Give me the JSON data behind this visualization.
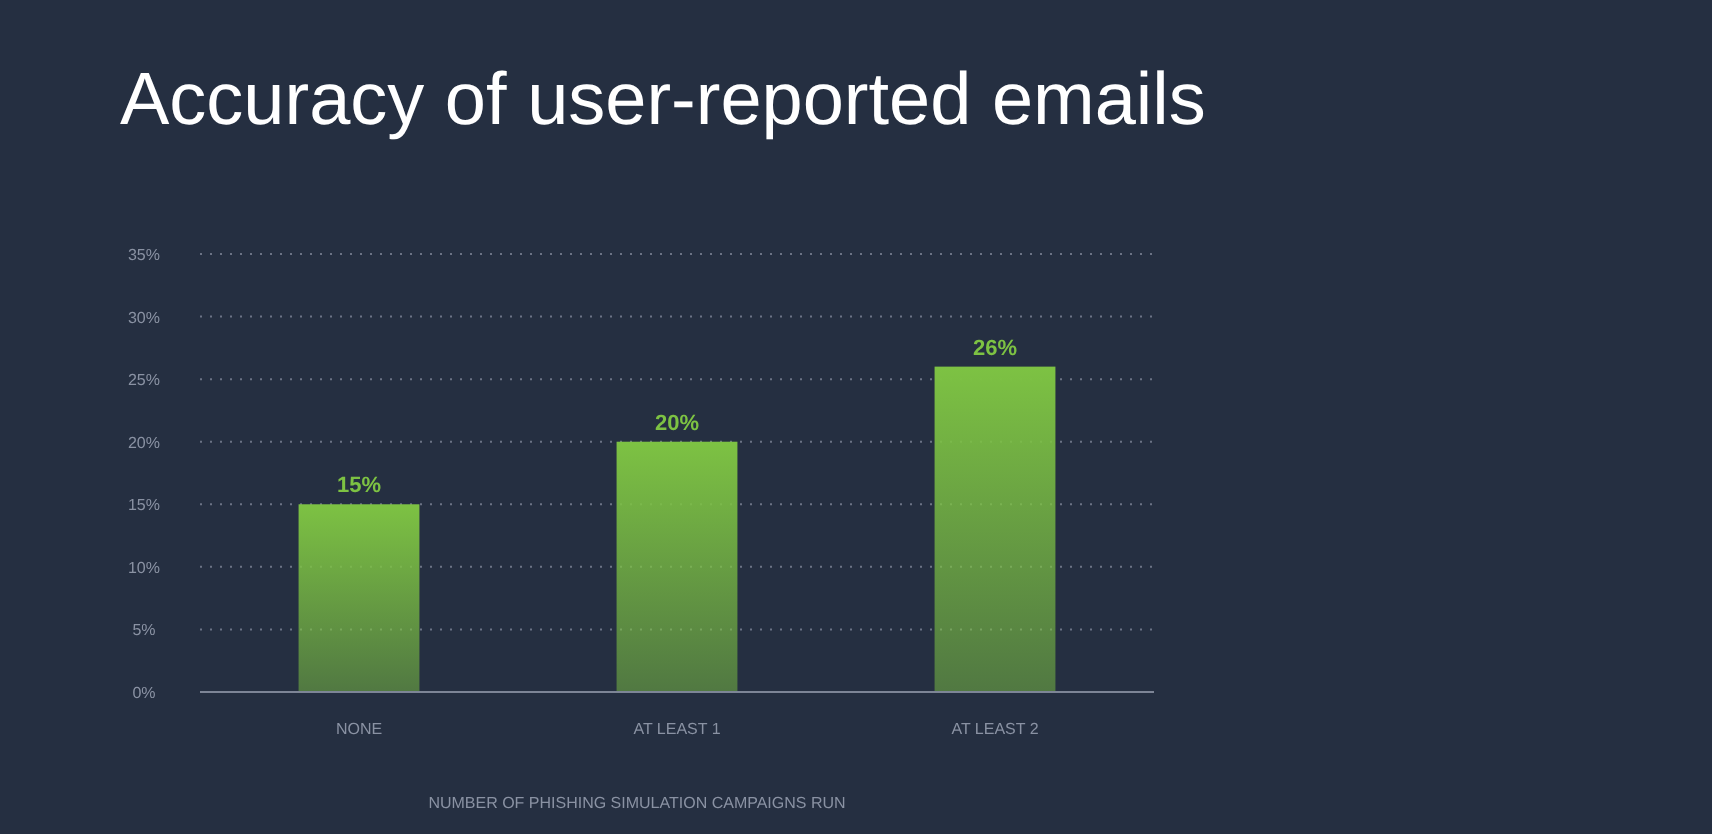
{
  "chart_data": {
    "type": "bar",
    "title": "Accuracy of user-reported emails",
    "xlabel": "NUMBER OF PHISHING SIMULATION CAMPAIGNS RUN",
    "categories": [
      "NONE",
      "AT LEAST 1",
      "AT LEAST 2"
    ],
    "values": [
      15,
      20,
      26
    ],
    "value_labels": [
      "15%",
      "20%",
      "26%"
    ],
    "color": "#7dc243",
    "ylim": [
      0,
      35
    ],
    "yticks": [
      {
        "value": 0,
        "label": "0%"
      },
      {
        "value": 5,
        "label": "5%"
      },
      {
        "value": 10,
        "label": "10%"
      },
      {
        "value": 15,
        "label": "15%"
      },
      {
        "value": 20,
        "label": "20%"
      },
      {
        "value": 25,
        "label": "25%"
      },
      {
        "value": 30,
        "label": "30%"
      },
      {
        "value": 35,
        "label": "35%"
      }
    ],
    "grid": "y"
  }
}
